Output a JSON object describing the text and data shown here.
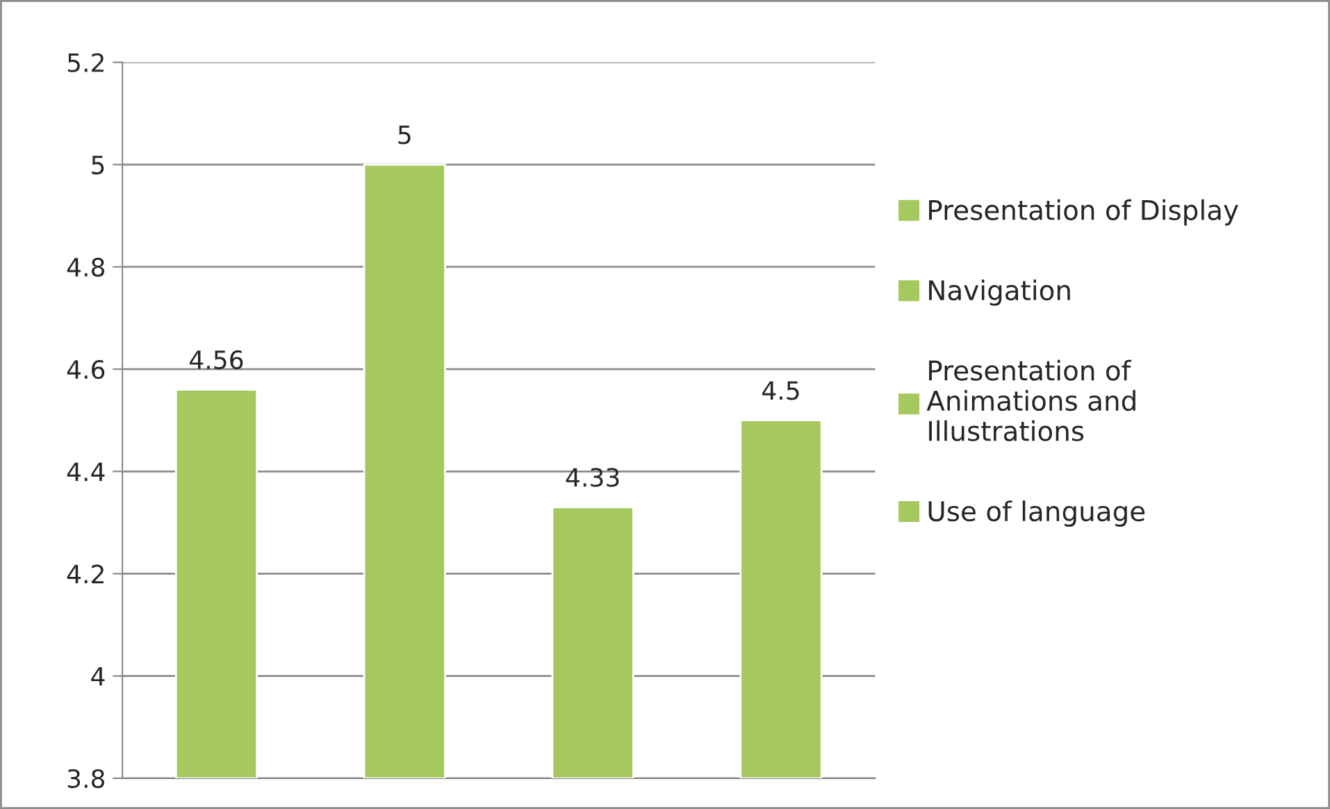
{
  "chart_data": {
    "type": "bar",
    "categories": [
      null,
      null,
      null,
      null
    ],
    "series": [
      {
        "name": "Presentation of Display",
        "color": "#a5c85f",
        "values": [
          4.56,
          null,
          null,
          null
        ]
      },
      {
        "name": "Navigation",
        "color": "#a5c85f",
        "values": [
          null,
          5,
          null,
          null
        ]
      },
      {
        "name": "Presentation of Animations and Illustrations",
        "color": "#a5c85f",
        "values": [
          null,
          null,
          4.33,
          null
        ]
      },
      {
        "name": "Use of language",
        "color": "#a5c85f",
        "values": [
          null,
          null,
          null,
          4.5
        ]
      }
    ],
    "ylim": [
      3.8,
      5.2
    ],
    "yticks": [
      3.8,
      4,
      4.2,
      4.4,
      4.6,
      4.8,
      5,
      5.2
    ],
    "grid": "y",
    "legend": "right",
    "data_labels": true
  }
}
